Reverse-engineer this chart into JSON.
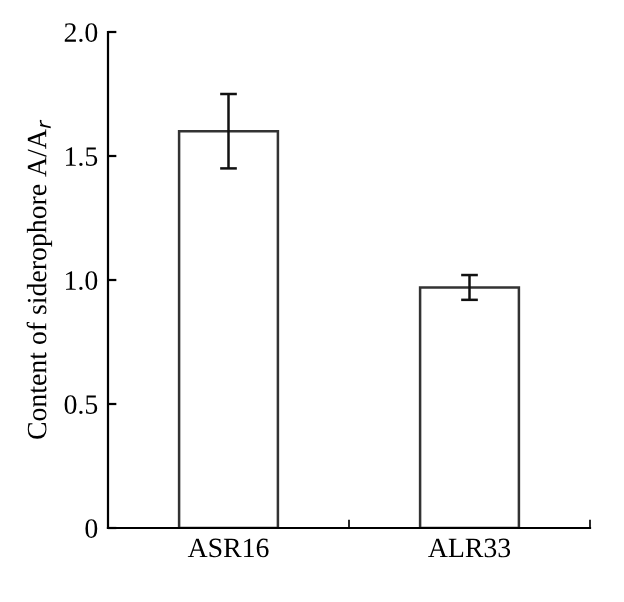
{
  "chart_data": {
    "type": "bar",
    "ylabel": "Content of siderophore A/A$_{r}$",
    "categories": [
      "ASR16",
      "ALR33"
    ],
    "values": [
      1.6,
      0.97
    ],
    "errors": [
      0.15,
      0.05
    ],
    "color": "#ffffff",
    "ylim": [
      0,
      2.0
    ],
    "yticks": [
      {
        "value": 0,
        "label": "0"
      },
      0.5,
      {
        "value": 1,
        "label": "1.0"
      },
      1.5,
      {
        "value": 2,
        "label": "2.0"
      }
    ],
    "grid": false
  }
}
